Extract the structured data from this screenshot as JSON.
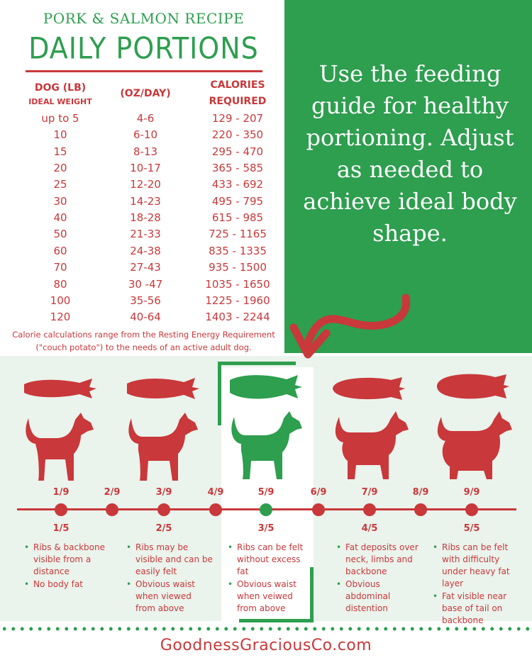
{
  "header": {
    "subtitle": "PORK & SALMON RECIPE",
    "title": "DAILY PORTIONS"
  },
  "table": {
    "headers": {
      "weight_line1": "DOG (LB)",
      "weight_line2": "IDEAL WEIGHT",
      "oz": "(OZ/DAY)",
      "cal_line1": "CALORIES",
      "cal_line2": "REQUIRED"
    },
    "rows": [
      [
        "up to 5",
        "4-6",
        "129 - 207"
      ],
      [
        "10",
        "6-10",
        "220 - 350"
      ],
      [
        "15",
        "8-13",
        "295 - 470"
      ],
      [
        "20",
        "10-17",
        "365 - 585"
      ],
      [
        "25",
        "12-20",
        "433 - 692"
      ],
      [
        "30",
        "14-23",
        "495 - 795"
      ],
      [
        "40",
        "18-28",
        "615 - 985"
      ],
      [
        "50",
        "21-33",
        "725 - 1165"
      ],
      [
        "60",
        "24-38",
        "835 - 1335"
      ],
      [
        "70",
        "27-43",
        "935 - 1500"
      ],
      [
        "80",
        "30 -47",
        "1035 - 1650"
      ],
      [
        "100",
        "35-56",
        "1225 - 1960"
      ],
      [
        "120",
        "40-64",
        "1403 - 2244"
      ]
    ],
    "note": "Calorie calculations range from the Resting Energy Requirement (\"couch potato\") to the needs of an active adult dog."
  },
  "callout": "Use the feeding guide for healthy portioning. Adjust as needed to achieve ideal body shape.",
  "scale": {
    "nine_labels": [
      "1/9",
      "2/9",
      "3/9",
      "4/9",
      "5/9",
      "6/9",
      "7/9",
      "8/9",
      "9/9"
    ],
    "five_labels": [
      "1/5",
      "2/5",
      "3/5",
      "4/5",
      "5/5"
    ],
    "ideal_index": 4
  },
  "descriptions": [
    [
      "Ribs &  backbone visible from a distance",
      "No body fat"
    ],
    [
      "Ribs may be visible and can be easily felt",
      "Obvious waist when viewed from above"
    ],
    [
      "Ribs can be felt without excess fat",
      "Obvious waist when veiwed from above"
    ],
    [
      "Fat deposits over neck, limbs and backbone",
      "Obvious abdominal distention"
    ],
    [
      "Ribs can be felt with difficulty under heavy fat layer",
      "Fat visible near base of tail on backbone"
    ]
  ],
  "colors": {
    "red": "#c9383a",
    "green": "#2e9e4f",
    "panel": "#eaf3ec"
  },
  "footer": "GoodnessGraciousCo.com"
}
